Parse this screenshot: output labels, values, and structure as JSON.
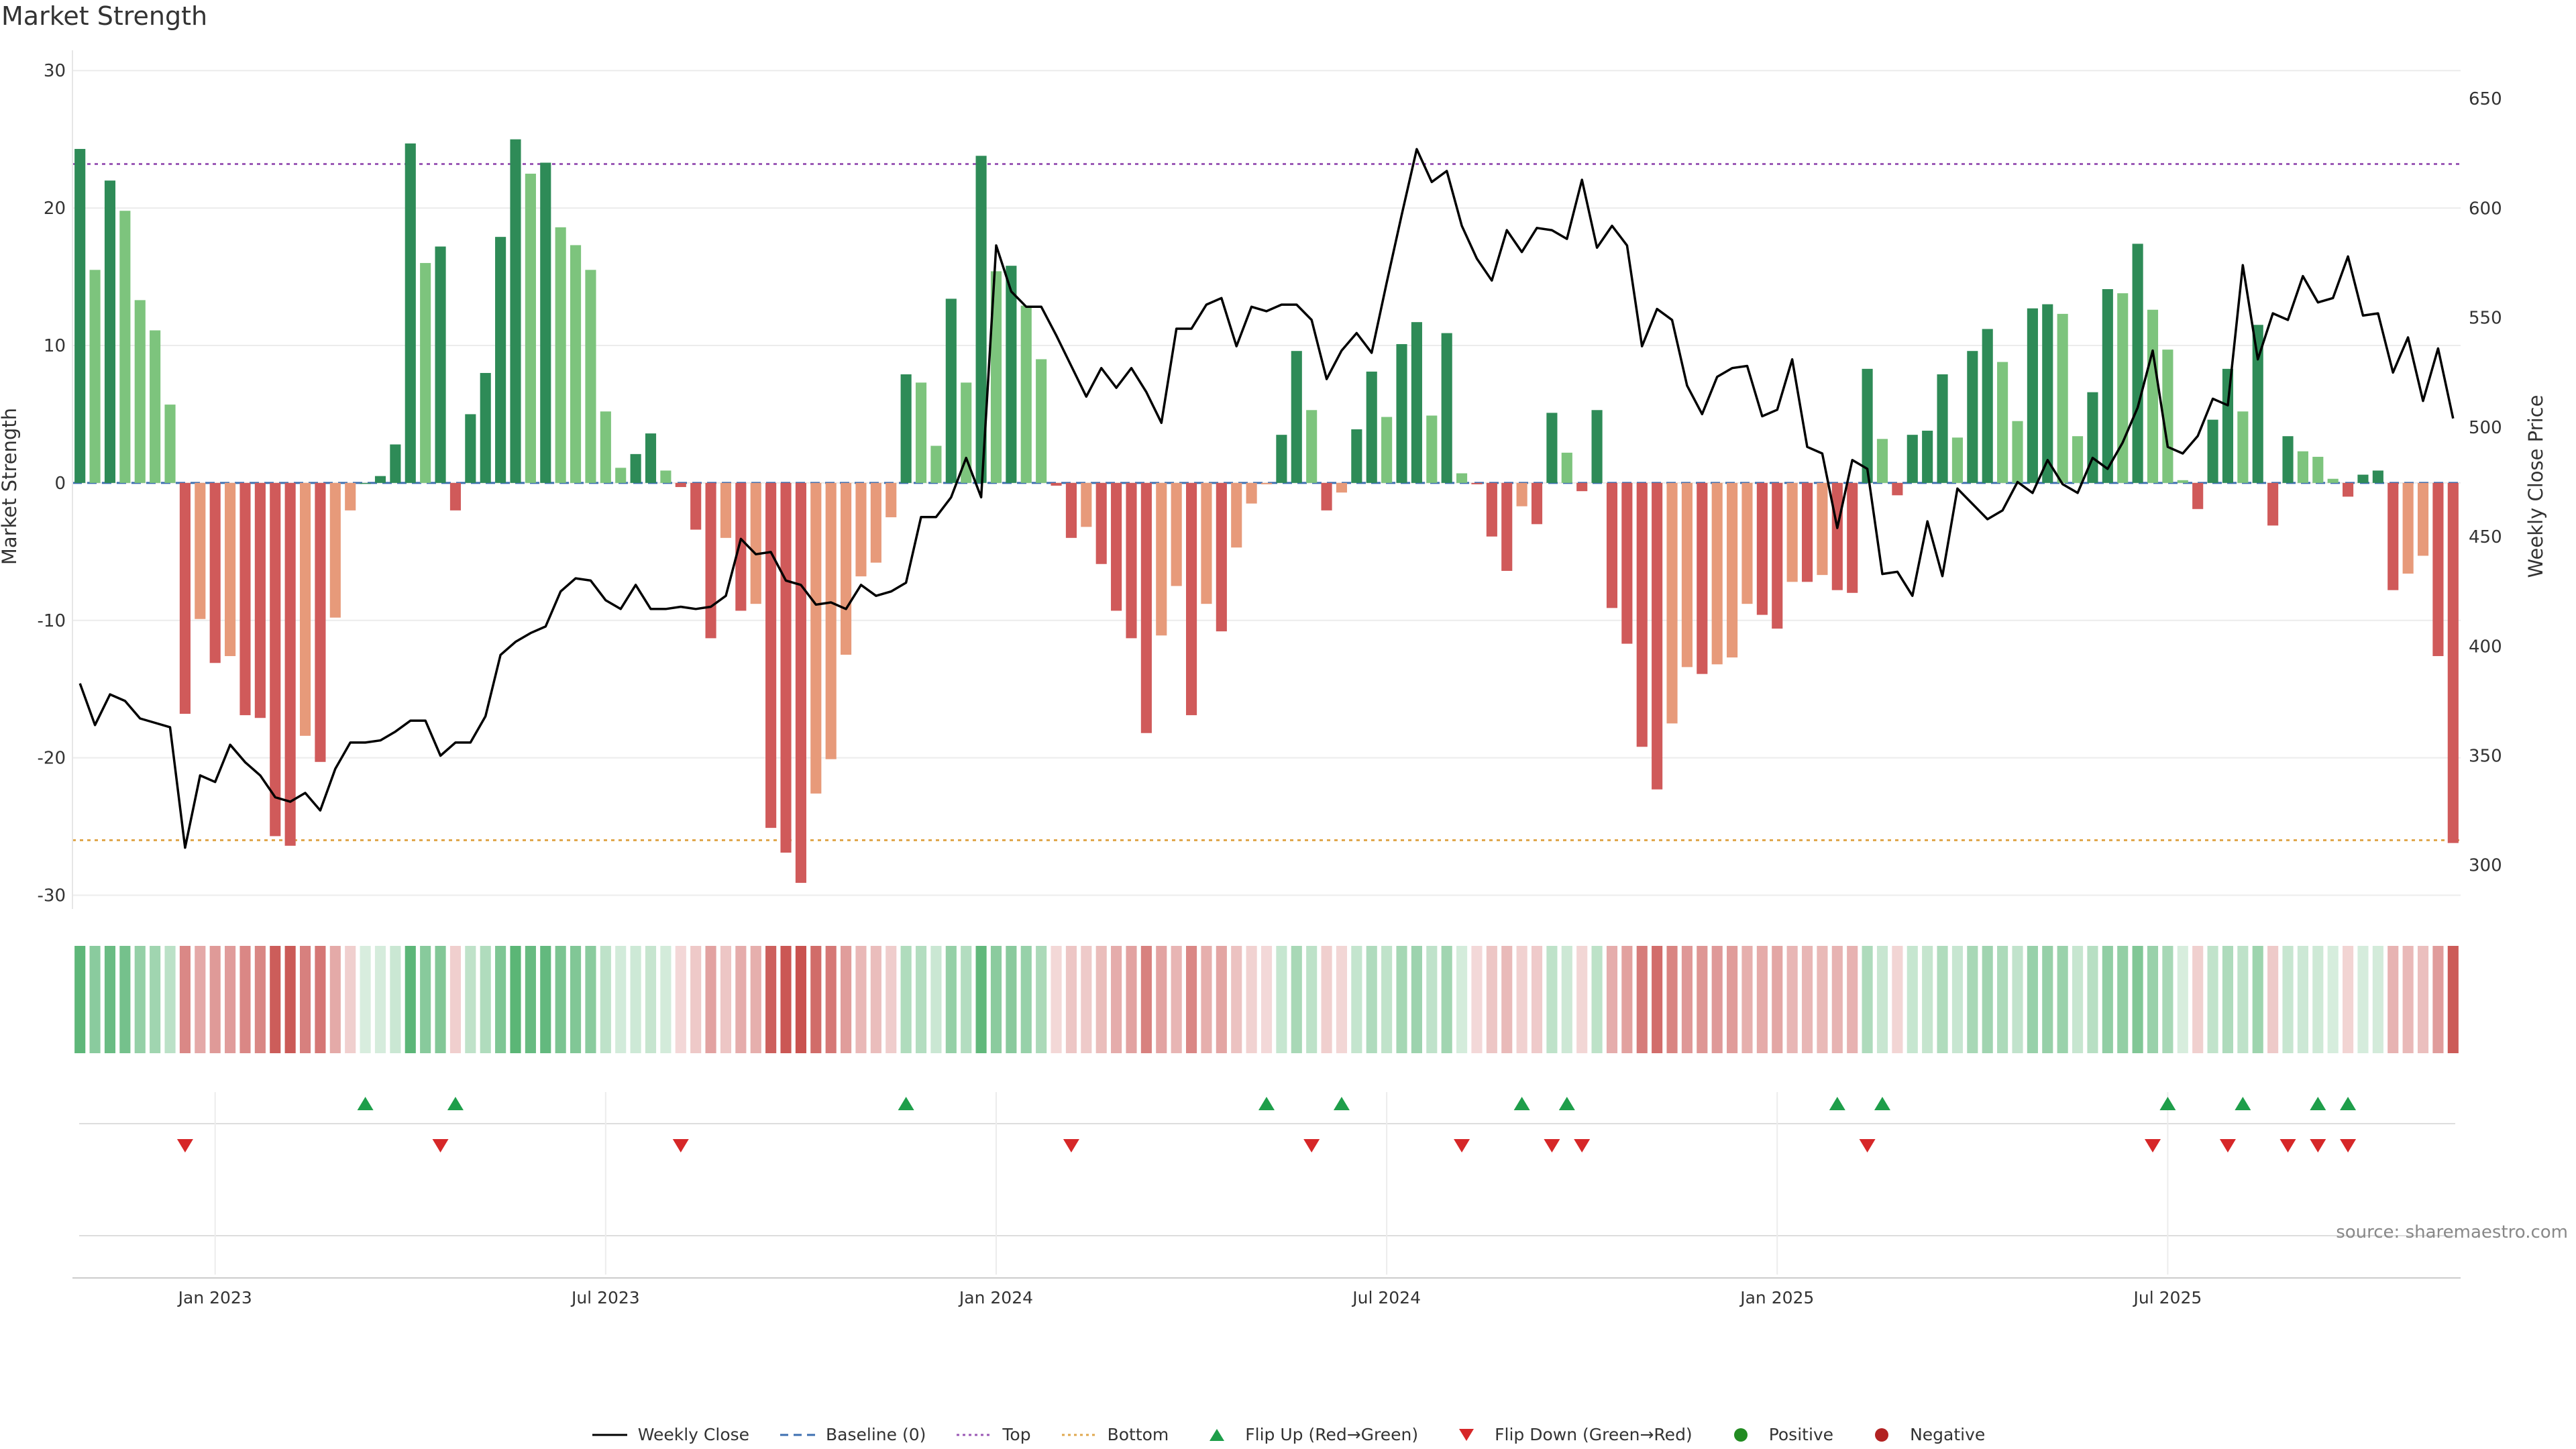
{
  "page": {
    "title": "Market Strength",
    "source": "source: sharemaestro.com"
  },
  "chart_data": {
    "type": "bar+line",
    "title": "Market Strength",
    "ylabel_left": "Market Strength",
    "ylabel_right": "Weekly Close Price",
    "ylim_left": [
      -31,
      30.5
    ],
    "ylim_right": [
      280,
      666
    ],
    "yticks_left": [
      30,
      20,
      10,
      0,
      -10,
      -20,
      -30
    ],
    "yticks_right": [
      650,
      600,
      550,
      500,
      450,
      400,
      350,
      300
    ],
    "top_threshold": 23.2,
    "bottom_threshold": -26.0,
    "x_tick_labels": [
      {
        "label": "Jan 2023",
        "week": 9
      },
      {
        "label": "Jul 2023",
        "week": 35
      },
      {
        "label": "Jan 2024",
        "week": 61
      },
      {
        "label": "Jul 2024",
        "week": 87
      },
      {
        "label": "Jan 2025",
        "week": 113
      },
      {
        "label": "Jul 2025",
        "week": 139
      }
    ],
    "strength": [
      24.3,
      15.5,
      22,
      19.8,
      13.3,
      11.1,
      5.7,
      -16.8,
      -9.9,
      -13.1,
      -12.6,
      -16.9,
      -17.1,
      -25.7,
      -26.4,
      -18.4,
      -20.3,
      -9.8,
      -2,
      0,
      0.5,
      2.8,
      24.7,
      16,
      17.2,
      -2,
      5,
      8,
      17.9,
      25,
      22.5,
      23.3,
      18.6,
      17.3,
      15.5,
      5.2,
      1.1,
      2.1,
      3.6,
      0.9,
      -0.3,
      -3.4,
      -11.3,
      -4,
      -9.3,
      -8.8,
      -25.1,
      -26.9,
      -29.1,
      -22.6,
      -20.1,
      -12.5,
      -6.8,
      -5.8,
      -2.5,
      7.9,
      7.3,
      2.7,
      13.4,
      7.3,
      23.8,
      15.4,
      15.8,
      12.9,
      9,
      -0.2,
      -4,
      -3.2,
      -5.9,
      -9.3,
      -11.3,
      -18.2,
      -11.1,
      -7.5,
      -16.9,
      -8.8,
      -10.8,
      -4.7,
      -1.5,
      -0.1,
      3.5,
      9.6,
      5.3,
      -2,
      -0.7,
      3.9,
      8.1,
      4.8,
      10.1,
      11.7,
      4.9,
      10.9,
      0.7,
      -0.1,
      -3.9,
      -6.4,
      -1.7,
      -3,
      5.1,
      2.2,
      -0.6,
      5.3,
      -9.1,
      -11.7,
      -19.2,
      -22.3,
      -17.5,
      -13.4,
      -13.9,
      -13.2,
      -12.7,
      -8.8,
      -9.6,
      -10.6,
      -7.2,
      -7.2,
      -6.7,
      -7.8,
      -8,
      8.3,
      3.2,
      -0.9,
      3.5,
      3.8,
      7.9,
      3.3,
      9.6,
      11.2,
      8.8,
      4.5,
      12.7,
      13,
      12.3,
      3.4,
      6.6,
      14.1,
      13.8,
      17.4,
      12.6,
      9.7,
      0.2,
      -1.9,
      4.6,
      8.3,
      5.2,
      11.5,
      -3.1,
      3.4,
      2.3,
      1.9,
      0.3,
      -1,
      0.6,
      0.9,
      -7.8,
      -6.6,
      -5.3,
      -12.6,
      -26.2
    ],
    "weekly_close": [
      383,
      364,
      378,
      375,
      367,
      365,
      363,
      308,
      341,
      338,
      355,
      347,
      341,
      331,
      329,
      333,
      325,
      344,
      356,
      356,
      357,
      361,
      366,
      366,
      350,
      356,
      356,
      368,
      396,
      402,
      406,
      409,
      425,
      431,
      430,
      421,
      417,
      428,
      417,
      417,
      418,
      417,
      418,
      423,
      449,
      442,
      443,
      430,
      428,
      419,
      420,
      417,
      428,
      423,
      425,
      429,
      459,
      459,
      468,
      486,
      468,
      583,
      562,
      555,
      555,
      542,
      528,
      514,
      527,
      518,
      527,
      516,
      502,
      545,
      545,
      556,
      559,
      537,
      555,
      553,
      556,
      556,
      549,
      522,
      535,
      543,
      534,
      566,
      597,
      627,
      612,
      617,
      592,
      577,
      567,
      590,
      580,
      591,
      590,
      586,
      613,
      582,
      592,
      583,
      537,
      554,
      549,
      519,
      506,
      523,
      527,
      528,
      505,
      508,
      531,
      491,
      488,
      454,
      485,
      481,
      433,
      434,
      423,
      457,
      432,
      472,
      465,
      458,
      462,
      475,
      470,
      485,
      474,
      470,
      486,
      481,
      493,
      509,
      535,
      491,
      488,
      496,
      513,
      510,
      574,
      531,
      552,
      549,
      569,
      557,
      559,
      578,
      551,
      552,
      525,
      541,
      512,
      536,
      504
    ],
    "flip_up_weeks": [
      19,
      25,
      55,
      79,
      84,
      96,
      99,
      117,
      120,
      139,
      144,
      149,
      151
    ],
    "flip_down_weeks": [
      7,
      24,
      40,
      66,
      82,
      92,
      98,
      100,
      119,
      138,
      143,
      147,
      149,
      151
    ],
    "legend": [
      {
        "label": "Weekly Close",
        "kind": "line-solid",
        "color": "#000000"
      },
      {
        "label": "Baseline (0)",
        "kind": "line-dash",
        "color": "#3d6fb0"
      },
      {
        "label": "Top",
        "kind": "line-dot",
        "color": "#9b59b6"
      },
      {
        "label": "Bottom",
        "kind": "line-dot",
        "color": "#e0a84e"
      },
      {
        "label": "Flip Up (Red→Green)",
        "kind": "tri-up",
        "color": "#1e9e4a"
      },
      {
        "label": "Flip Down (Green→Red)",
        "kind": "tri-down",
        "color": "#d62728"
      },
      {
        "label": "Positive",
        "kind": "dot",
        "color": "#228b22"
      },
      {
        "label": "Negative",
        "kind": "dot",
        "color": "#b22222"
      }
    ]
  },
  "colors": {
    "pos_strong": "#2e8b57",
    "pos_weak": "#7dc47d",
    "neg_strong": "#d05a5a",
    "neg_weak": "#e79a7a",
    "top_line": "#9b59b6",
    "bottom_line": "#e0a84e",
    "baseline": "#3d6fb0",
    "flip_up": "#1e9e4a",
    "flip_down": "#d62728"
  }
}
